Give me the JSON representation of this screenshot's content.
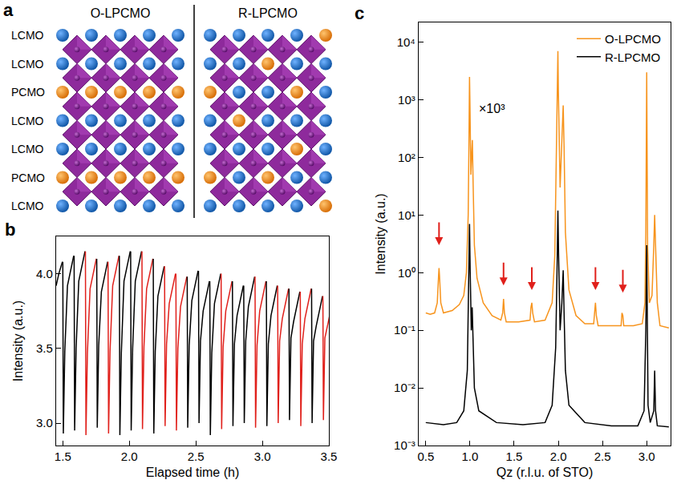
{
  "diagram": {
    "panel_label": "a",
    "row_labels": [
      "LCMO",
      "LCMO",
      "PCMO",
      "LCMO",
      "LCMO",
      "PCMO",
      "LCMO"
    ],
    "structures": [
      {
        "title": "O-LPCMO",
        "pr_sites": [
          [],
          [],
          [
            0,
            1,
            2,
            3,
            4
          ],
          [],
          [],
          [
            0,
            1,
            2,
            3,
            4
          ],
          []
        ]
      },
      {
        "title": "R-LPCMO",
        "pr_sites": [
          [
            4
          ],
          [
            2
          ],
          [
            0,
            3
          ],
          [
            1
          ],
          [
            3
          ],
          [
            0,
            2
          ],
          [
            4
          ]
        ]
      }
    ]
  },
  "chart_data": [
    {
      "panel_label": "b",
      "type": "line",
      "grid": false,
      "x_label": "Elapsed time (h)",
      "y_label": "Intensity (a.u.)",
      "xlim": [
        1.45,
        3.5
      ],
      "xticks": [
        1.5,
        {
          "value": 2,
          "label": "2.0"
        },
        2.5,
        {
          "value": 3,
          "label": "3.0"
        },
        3.5
      ],
      "ylim": [
        2.85,
        4.25
      ],
      "yticks": [
        {
          "value": 3,
          "label": "3.0"
        },
        3.5,
        {
          "value": 4,
          "label": "4.0"
        }
      ],
      "series": [
        {
          "color": "#000000",
          "x": [
            1.45,
            1.47,
            1.497
          ],
          "values": [
            3.92,
            4.0,
            4.08
          ]
        },
        {
          "color": "#000000",
          "x": [
            1.5,
            1.504,
            1.515,
            1.535,
            1.582
          ],
          "values": [
            4.08,
            2.93,
            3.48,
            3.92,
            4.12
          ]
        },
        {
          "color": "#000000",
          "x": [
            1.585,
            1.589,
            1.6,
            1.62,
            1.667
          ],
          "values": [
            4.12,
            2.95,
            3.5,
            3.95,
            4.15
          ]
        },
        {
          "color": "#e0201b",
          "x": [
            1.67,
            1.674,
            1.685,
            1.705,
            1.752
          ],
          "values": [
            4.15,
            2.92,
            3.47,
            3.9,
            4.1
          ]
        },
        {
          "color": "#000000",
          "x": [
            1.755,
            1.759,
            1.77,
            1.79,
            1.837
          ],
          "values": [
            4.1,
            2.97,
            3.52,
            3.88,
            4.08
          ]
        },
        {
          "color": "#e0201b",
          "x": [
            1.84,
            1.844,
            1.855,
            1.875,
            1.922
          ],
          "values": [
            4.08,
            2.93,
            3.48,
            3.92,
            4.12
          ]
        },
        {
          "color": "#000000",
          "x": [
            1.925,
            1.929,
            1.94,
            1.96,
            2.007
          ],
          "values": [
            4.12,
            2.92,
            3.47,
            3.95,
            4.15
          ]
        },
        {
          "color": "#000000",
          "x": [
            2.01,
            2.014,
            2.025,
            2.045,
            2.092
          ],
          "values": [
            4.15,
            2.95,
            3.5,
            3.95,
            4.15
          ]
        },
        {
          "color": "#e0201b",
          "x": [
            2.095,
            2.099,
            2.11,
            2.13,
            2.177
          ],
          "values": [
            4.15,
            2.96,
            3.51,
            3.9,
            4.1
          ]
        },
        {
          "color": "#000000",
          "x": [
            2.18,
            2.184,
            2.195,
            2.215,
            2.262
          ],
          "values": [
            4.1,
            2.93,
            3.48,
            3.85,
            4.05
          ]
        },
        {
          "color": "#e0201b",
          "x": [
            2.265,
            2.269,
            2.28,
            2.3,
            2.347
          ],
          "values": [
            4.05,
            2.98,
            3.53,
            3.8,
            4.0
          ]
        },
        {
          "color": "#e0201b",
          "x": [
            2.35,
            2.354,
            2.365,
            2.385,
            2.432
          ],
          "values": [
            4.0,
            2.95,
            3.5,
            3.78,
            3.98
          ]
        },
        {
          "color": "#000000",
          "x": [
            2.435,
            2.439,
            2.45,
            2.47,
            2.517
          ],
          "values": [
            3.98,
            2.97,
            3.52,
            3.82,
            4.02
          ]
        },
        {
          "color": "#000000",
          "x": [
            2.52,
            2.524,
            2.535,
            2.555,
            2.602
          ],
          "values": [
            4.02,
            3.0,
            3.55,
            3.75,
            3.95
          ]
        },
        {
          "color": "#000000",
          "x": [
            2.605,
            2.609,
            2.62,
            2.64,
            2.687
          ],
          "values": [
            3.95,
            2.92,
            3.47,
            3.8,
            4.0
          ]
        },
        {
          "color": "#e0201b",
          "x": [
            2.69,
            2.694,
            2.705,
            2.725,
            2.772
          ],
          "values": [
            4.0,
            2.96,
            3.51,
            3.75,
            3.95
          ]
        },
        {
          "color": "#000000",
          "x": [
            2.775,
            2.779,
            2.79,
            2.81,
            2.857
          ],
          "values": [
            3.95,
            2.98,
            3.53,
            3.72,
            3.92
          ]
        },
        {
          "color": "#000000",
          "x": [
            2.86,
            2.864,
            2.875,
            2.895,
            2.942
          ],
          "values": [
            3.92,
            3.0,
            3.55,
            3.78,
            3.98
          ]
        },
        {
          "color": "#e0201b",
          "x": [
            2.945,
            2.949,
            2.96,
            2.98,
            3.027
          ],
          "values": [
            3.98,
            2.97,
            3.52,
            3.75,
            3.95
          ]
        },
        {
          "color": "#000000",
          "x": [
            3.03,
            3.034,
            3.045,
            3.065,
            3.112
          ],
          "values": [
            3.95,
            2.98,
            3.53,
            3.72,
            3.92
          ]
        },
        {
          "color": "#e0201b",
          "x": [
            3.115,
            3.119,
            3.13,
            3.15,
            3.197
          ],
          "values": [
            3.92,
            3.0,
            3.55,
            3.7,
            3.9
          ]
        },
        {
          "color": "#000000",
          "x": [
            3.2,
            3.204,
            3.215,
            3.235,
            3.282
          ],
          "values": [
            3.9,
            3.02,
            3.57,
            3.68,
            3.88
          ]
        },
        {
          "color": "#e0201b",
          "x": [
            3.285,
            3.289,
            3.3,
            3.32,
            3.367
          ],
          "values": [
            3.88,
            2.98,
            3.53,
            3.7,
            3.9
          ]
        },
        {
          "color": "#000000",
          "x": [
            3.37,
            3.374,
            3.385,
            3.405,
            3.452
          ],
          "values": [
            3.9,
            3.0,
            3.55,
            3.65,
            3.85
          ]
        },
        {
          "color": "#e0201b",
          "x": [
            3.455,
            3.459,
            3.47,
            3.49,
            3.537
          ],
          "values": [
            3.85,
            3.02,
            3.57,
            3.65,
            3.85
          ]
        }
      ]
    },
    {
      "panel_label": "c",
      "type": "line",
      "log": "y",
      "grid": false,
      "legend": "top right",
      "x_label": "Qz (r.l.u. of STO)",
      "y_label": "Intensity (a.u.)",
      "xlim": [
        0.42,
        3.27
      ],
      "xticks": [
        0.5,
        {
          "value": 1,
          "label": "1.0"
        },
        1.5,
        {
          "value": 2,
          "label": "2.0"
        },
        2.5,
        {
          "value": 3,
          "label": "3.0"
        }
      ],
      "ylim": [
        0.001,
        22000
      ],
      "yticks": [
        {
          "value": 0.001,
          "label": "10⁻³"
        },
        {
          "value": 0.01,
          "label": "10⁻²"
        },
        {
          "value": 0.1,
          "label": "10⁻¹"
        },
        {
          "value": 1,
          "label": "10⁰"
        },
        {
          "value": 10,
          "label": "10¹"
        },
        {
          "value": 100,
          "label": "10²"
        },
        {
          "value": 1000,
          "label": "10³"
        },
        {
          "value": 10000,
          "label": "10⁴"
        }
      ],
      "annotations": [
        {
          "text": "×10³",
          "x": 1.08,
          "y": 700
        }
      ],
      "arrows": {
        "color": "#e0201b",
        "x": [
          0.65,
          1.38,
          1.7,
          2.42,
          2.73
        ],
        "y": [
          3,
          0.6,
          0.5,
          0.5,
          0.45
        ]
      },
      "series": [
        {
          "name": "O-LPCMO",
          "color": "#f7941d",
          "x": [
            0.5,
            0.55,
            0.6,
            0.63,
            0.645,
            0.65,
            0.655,
            0.67,
            0.7,
            0.8,
            0.88,
            0.93,
            0.96,
            0.98,
            0.99,
            0.995,
            1.0,
            1.01,
            1.02,
            1.027,
            1.035,
            1.05,
            1.08,
            1.15,
            1.25,
            1.35,
            1.37,
            1.38,
            1.39,
            1.41,
            1.55,
            1.68,
            1.69,
            1.7,
            1.71,
            1.73,
            1.85,
            1.93,
            1.96,
            1.98,
            1.99,
            1.995,
            2.0,
            2.02,
            2.04,
            2.055,
            2.065,
            2.08,
            2.12,
            2.2,
            2.3,
            2.4,
            2.41,
            2.42,
            2.43,
            2.45,
            2.6,
            2.71,
            2.72,
            2.73,
            2.74,
            2.85,
            2.95,
            2.98,
            2.99,
            2.995,
            3.0,
            3.005,
            3.01,
            3.03,
            3.06,
            3.08,
            3.09,
            3.1,
            3.12,
            3.15,
            3.25
          ],
          "values": [
            0.2,
            0.19,
            0.2,
            0.3,
            0.9,
            1.2,
            0.9,
            0.3,
            0.2,
            0.22,
            0.28,
            0.4,
            1.0,
            10,
            300,
            2500,
            800,
            50,
            120,
            200,
            40,
            3,
            0.8,
            0.3,
            0.18,
            0.15,
            0.2,
            0.35,
            0.2,
            0.14,
            0.14,
            0.15,
            0.25,
            0.3,
            0.2,
            0.14,
            0.15,
            0.3,
            2,
            100,
            2000,
            7000,
            1500,
            30,
            200,
            800,
            150,
            5,
            0.5,
            0.18,
            0.13,
            0.13,
            0.2,
            0.3,
            0.18,
            0.12,
            0.12,
            0.12,
            0.2,
            0.18,
            0.12,
            0.12,
            0.13,
            0.3,
            5,
            100,
            3000,
            100,
            3,
            0.3,
            0.4,
            3,
            10,
            3,
            0.3,
            0.12,
            0.11
          ]
        },
        {
          "name": "R-LPCMO",
          "color": "#000000",
          "x": [
            0.5,
            0.7,
            0.85,
            0.93,
            0.97,
            0.985,
            0.995,
            1.003,
            1.015,
            1.025,
            1.035,
            1.05,
            1.1,
            1.3,
            1.6,
            1.85,
            1.93,
            1.97,
            1.985,
            1.995,
            2.003,
            2.02,
            2.04,
            2.055,
            2.065,
            2.08,
            2.12,
            2.3,
            2.6,
            2.9,
            2.97,
            2.99,
            3.0,
            3.005,
            3.015,
            3.04,
            3.08,
            3.09,
            3.1,
            3.12,
            3.25
          ],
          "values": [
            0.0025,
            0.0023,
            0.0025,
            0.004,
            0.02,
            0.5,
            7,
            1,
            0.1,
            0.25,
            0.08,
            0.01,
            0.004,
            0.0025,
            0.0023,
            0.0025,
            0.005,
            0.05,
            1,
            12,
            2,
            0.1,
            0.3,
            1.1,
            0.2,
            0.02,
            0.005,
            0.0025,
            0.0022,
            0.0022,
            0.004,
            0.1,
            3,
            0.1,
            0.005,
            0.0025,
            0.004,
            0.02,
            0.004,
            0.0022,
            0.0021
          ]
        }
      ]
    }
  ]
}
